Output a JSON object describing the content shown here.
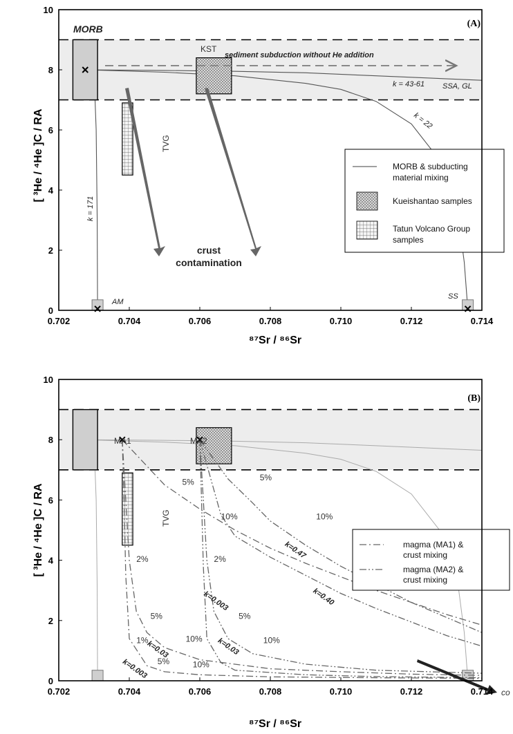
{
  "chart_data": [
    {
      "type": "line",
      "panel_label": "(A)",
      "ylabel": "[ ³He / ⁴He ]C / RA",
      "xlabel": "⁸⁷Sr / ⁸⁶Sr",
      "xlim": [
        0.702,
        0.714
      ],
      "ylim": [
        0,
        10
      ],
      "x_ticks": [
        "0.702",
        "0.704",
        "0.706",
        "0.708",
        "0.710",
        "0.712",
        "0.714"
      ],
      "y_ticks": [
        "0",
        "2",
        "4",
        "6",
        "8",
        "10"
      ],
      "annotations": {
        "morb": "MORB",
        "kst": "KST",
        "tvg": "TVG",
        "sediment": "sediment subduction without He addition",
        "k4361": "k = 43-61",
        "ssagl": "SSA, GL",
        "k22": "k = 22",
        "k171": "k = 171",
        "am": "AM",
        "ss": "SS",
        "crust1": "crust",
        "crust2": "contamination"
      },
      "legend": [
        {
          "label_1": "MORB & subducting",
          "label_2": "material mixing"
        },
        {
          "label_1": "Kueishantao samples",
          "label_2": ""
        },
        {
          "label_1": "Tatun Volcano Group",
          "label_2": "samples"
        }
      ],
      "morb_box": {
        "x": [
          0.7024,
          0.7031
        ],
        "y": [
          7,
          9
        ]
      },
      "kst_box": {
        "x": [
          0.7059,
          0.7069
        ],
        "y": [
          7.2,
          8.4
        ]
      },
      "tvg_box": {
        "x": [
          0.7038,
          0.7041
        ],
        "y": [
          4.5,
          6.9
        ]
      },
      "he_band": {
        "y": [
          7,
          9
        ]
      },
      "endmembers": [
        {
          "name": "MORB",
          "x": 0.70275,
          "y": 8
        },
        {
          "name": "AM",
          "x": 0.7031,
          "y": 0.05
        },
        {
          "name": "SS",
          "x": 0.7136,
          "y": 0.05
        }
      ],
      "series": [
        {
          "name": "k = 43-61",
          "x": [
            0.70275,
            0.705,
            0.707,
            0.709,
            0.711,
            0.714
          ],
          "y": [
            8.0,
            7.98,
            7.95,
            7.9,
            7.8,
            7.65
          ]
        },
        {
          "name": "k = 22",
          "x": [
            0.70275,
            0.705,
            0.707,
            0.709,
            0.71,
            0.711,
            0.712,
            0.7128,
            0.7133,
            0.7135,
            0.7136
          ],
          "y": [
            8.0,
            7.92,
            7.8,
            7.55,
            7.35,
            6.95,
            6.2,
            5.0,
            3.4,
            1.6,
            0.05
          ]
        },
        {
          "name": "k = 171",
          "x": [
            0.70275,
            0.70295,
            0.70302,
            0.70306,
            0.70309,
            0.7031
          ],
          "y": [
            8.0,
            7.8,
            7.3,
            6.0,
            3.0,
            0.05
          ]
        }
      ]
    },
    {
      "type": "line",
      "panel_label": "(B)",
      "ylabel": "[ ³He / ⁴He ]C / RA",
      "xlabel": "⁸⁷Sr / ⁸⁶Sr",
      "xlim": [
        0.702,
        0.714
      ],
      "ylim": [
        0,
        10
      ],
      "x_ticks": [
        "0.702",
        "0.704",
        "0.706",
        "0.708",
        "0.710",
        "0.712",
        "0.714"
      ],
      "y_ticks": [
        "0",
        "2",
        "4",
        "6",
        "8",
        "10"
      ],
      "annotations": {
        "ma1": "MA1",
        "ma2": "MA2",
        "tvg": "TVG",
        "co": "co"
      },
      "legend": [
        {
          "label_1": "magma (MA1) &",
          "label_2": "crust mixing"
        },
        {
          "label_1": "magma (MA2) &",
          "label_2": "crust mixing"
        }
      ],
      "endmembers": [
        {
          "name": "MA1",
          "x": 0.7038,
          "y": 8
        },
        {
          "name": "MA2",
          "x": 0.706,
          "y": 8
        }
      ],
      "series": [
        {
          "name": "MA1 k=0.47",
          "x": [
            0.7038,
            0.705,
            0.706,
            0.707,
            0.708,
            0.709,
            0.71,
            0.711,
            0.712,
            0.713,
            0.714
          ],
          "y": [
            8.0,
            6.5,
            5.7,
            5.0,
            4.4,
            3.9,
            3.45,
            3.0,
            2.6,
            2.2,
            1.85
          ]
        },
        {
          "name": "MA1 k=0.03",
          "x": [
            0.7038,
            0.7039,
            0.704,
            0.7042,
            0.7045,
            0.705,
            0.706,
            0.708,
            0.71,
            0.712,
            0.714
          ],
          "y": [
            8.0,
            6.0,
            4.0,
            2.3,
            1.6,
            1.1,
            0.7,
            0.4,
            0.3,
            0.22,
            0.18
          ]
        },
        {
          "name": "MA1 k=0.003",
          "x": [
            0.7038,
            0.70385,
            0.7039,
            0.704,
            0.7045,
            0.705,
            0.706,
            0.708,
            0.711,
            0.714
          ],
          "y": [
            8.0,
            6.0,
            3.5,
            1.4,
            0.5,
            0.3,
            0.2,
            0.13,
            0.1,
            0.08
          ]
        },
        {
          "name": "MA2 k=0.47",
          "x": [
            0.706,
            0.7068,
            0.7075,
            0.708,
            0.709,
            0.71,
            0.711,
            0.712,
            0.713,
            0.714
          ],
          "y": [
            8.0,
            6.7,
            5.9,
            5.3,
            4.5,
            3.8,
            3.2,
            2.6,
            2.1,
            1.6
          ]
        },
        {
          "name": "MA2 k=0.40",
          "x": [
            0.706,
            0.7066,
            0.707,
            0.708,
            0.709,
            0.71,
            0.711,
            0.712,
            0.713,
            0.714
          ],
          "y": [
            8.0,
            5.5,
            4.8,
            4.1,
            3.5,
            2.9,
            2.4,
            1.95,
            1.5,
            1.15
          ]
        },
        {
          "name": "MA2 k=0.03",
          "x": [
            0.706,
            0.7061,
            0.7062,
            0.7064,
            0.7068,
            0.7075,
            0.709,
            0.711,
            0.714
          ],
          "y": [
            8.0,
            6.0,
            4.0,
            2.3,
            1.4,
            0.9,
            0.55,
            0.35,
            0.25
          ]
        },
        {
          "name": "MA2 k=0.003",
          "x": [
            0.706,
            0.70605,
            0.7061,
            0.7062,
            0.7066,
            0.707,
            0.709,
            0.711,
            0.714
          ],
          "y": [
            8.0,
            6.0,
            3.8,
            1.4,
            0.6,
            0.35,
            0.2,
            0.14,
            0.1
          ]
        }
      ],
      "percent_labels": [
        {
          "text": "5%",
          "x": 0.7055,
          "y": 6.5
        },
        {
          "text": "10%",
          "x": 0.7066,
          "y": 5.35
        },
        {
          "text": "2%",
          "x": 0.7042,
          "y": 3.95
        },
        {
          "text": "5%",
          "x": 0.7046,
          "y": 2.05
        },
        {
          "text": "1%",
          "x": 0.7042,
          "y": 1.25
        },
        {
          "text": "5%",
          "x": 0.7048,
          "y": 0.55
        },
        {
          "text": "10%",
          "x": 0.7058,
          "y": 0.45
        },
        {
          "text": "10%",
          "x": 0.7056,
          "y": 1.3
        },
        {
          "text": "2%",
          "x": 0.7064,
          "y": 3.95
        },
        {
          "text": "5%",
          "x": 0.7071,
          "y": 2.05
        },
        {
          "text": "10%",
          "x": 0.7078,
          "y": 1.25
        },
        {
          "text": "5%",
          "x": 0.7077,
          "y": 6.65
        },
        {
          "text": "10%",
          "x": 0.7093,
          "y": 5.35
        }
      ],
      "k_labels": [
        {
          "text": "k=0.47",
          "x": 0.7084,
          "y": 4.5
        },
        {
          "text": "k=0.40",
          "x": 0.7092,
          "y": 2.95
        },
        {
          "text": "k=0.03",
          "x": 0.7045,
          "y": 1.2
        },
        {
          "text": "k=0.003",
          "x": 0.7038,
          "y": 0.6
        },
        {
          "text": "k=0.003",
          "x": 0.7061,
          "y": 2.85
        },
        {
          "text": "k=0.03",
          "x": 0.7065,
          "y": 1.3
        }
      ]
    }
  ]
}
